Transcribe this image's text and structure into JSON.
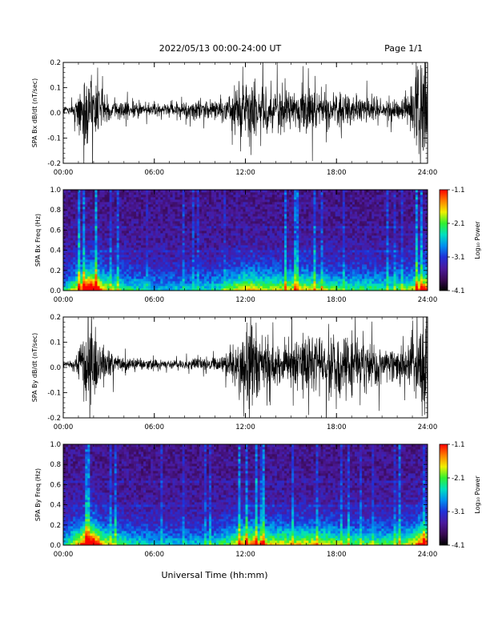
{
  "header": {
    "title": "2022/05/13  00:00-24:00 UT",
    "page": "Page 1/1"
  },
  "x_axis_label": "Universal Time (hh:mm)",
  "colors": {
    "trace": "#000000",
    "spectrogram_scale": [
      "#000000",
      "#3a0a55",
      "#4b1a9e",
      "#2030d8",
      "#0090f0",
      "#00e0c0",
      "#30f030",
      "#f0f000",
      "#ff8000",
      "#ff0000"
    ]
  },
  "chart_data": [
    {
      "type": "line",
      "id": "bx_trace",
      "ylabel": "SPA Bx dB/dt (nT/sec)",
      "x_ticks": [
        "00:00",
        "06:00",
        "12:00",
        "18:00",
        "24:00"
      ],
      "xlim": [
        0,
        24
      ],
      "ylim": [
        -0.2,
        0.2
      ],
      "y_ticks": [
        "-0.2",
        "-0.1",
        "0.0",
        "0.1",
        "0.2"
      ],
      "y_tick_values": [
        -0.2,
        -0.1,
        0.0,
        0.1,
        0.2
      ],
      "envelope": {
        "hours": [
          0,
          0.5,
          0.8,
          1.0,
          1.3,
          1.6,
          1.9,
          2.1,
          2.4,
          2.8,
          3.5,
          4.5,
          5.5,
          6.5,
          7.5,
          8.5,
          9.5,
          10.5,
          11.0,
          11.5,
          12.0,
          12.3,
          12.6,
          13.0,
          13.5,
          14.0,
          14.5,
          15.0,
          15.5,
          16.0,
          16.5,
          17.0,
          17.5,
          18.0,
          18.5,
          19.0,
          19.5,
          20.0,
          20.5,
          21.0,
          21.5,
          22.0,
          22.5,
          23.0,
          23.3,
          23.6,
          24.0
        ],
        "amplitude": [
          0.015,
          0.02,
          0.05,
          0.09,
          0.12,
          0.22,
          0.22,
          0.2,
          0.1,
          0.06,
          0.04,
          0.035,
          0.03,
          0.03,
          0.03,
          0.035,
          0.04,
          0.05,
          0.06,
          0.09,
          0.12,
          0.14,
          0.13,
          0.11,
          0.1,
          0.08,
          0.09,
          0.1,
          0.08,
          0.09,
          0.08,
          0.07,
          0.07,
          0.08,
          0.06,
          0.07,
          0.06,
          0.05,
          0.05,
          0.04,
          0.04,
          0.05,
          0.06,
          0.1,
          0.22,
          0.22,
          0.22
        ]
      }
    },
    {
      "type": "heatmap",
      "id": "bx_spectrogram",
      "ylabel": "SPA Bx Freq (Hz)",
      "x_ticks": [
        "00:00",
        "06:00",
        "12:00",
        "18:00",
        "24:00"
      ],
      "xlim": [
        0,
        24
      ],
      "ylim": [
        0.0,
        1.0
      ],
      "y_ticks": [
        "0.0",
        "0.2",
        "0.4",
        "0.6",
        "0.8",
        "1.0"
      ],
      "y_tick_values": [
        0.0,
        0.2,
        0.4,
        0.6,
        0.8,
        1.0
      ],
      "colorbar": {
        "label": "Log₁₀ Power",
        "ticks": [
          "-1.1",
          "-2.1",
          "-3.1",
          "-4.1"
        ],
        "range": [
          -4.1,
          -1.1
        ]
      },
      "activity": {
        "hours": [
          0,
          0.5,
          1.0,
          1.5,
          2.0,
          2.5,
          3.0,
          4.0,
          5.0,
          6.0,
          7.0,
          8.0,
          9.0,
          10.0,
          11.0,
          11.5,
          12.0,
          12.5,
          13.0,
          14.0,
          15.0,
          16.0,
          17.0,
          18.0,
          19.0,
          20.0,
          21.0,
          22.0,
          23.0,
          23.5,
          24.0
        ],
        "level": [
          0.3,
          0.45,
          0.6,
          0.85,
          0.9,
          0.65,
          0.5,
          0.4,
          0.35,
          0.3,
          0.3,
          0.3,
          0.32,
          0.35,
          0.45,
          0.55,
          0.6,
          0.58,
          0.55,
          0.5,
          0.55,
          0.55,
          0.5,
          0.45,
          0.4,
          0.42,
          0.4,
          0.42,
          0.5,
          0.7,
          0.75
        ]
      }
    },
    {
      "type": "line",
      "id": "by_trace",
      "ylabel": "SPA By dB/dt (nT/sec)",
      "x_ticks": [
        "00:00",
        "06:00",
        "12:00",
        "18:00",
        "24:00"
      ],
      "xlim": [
        0,
        24
      ],
      "ylim": [
        -0.2,
        0.2
      ],
      "y_ticks": [
        "-0.2",
        "-0.1",
        "0.0",
        "0.1",
        "0.2"
      ],
      "y_tick_values": [
        -0.2,
        -0.1,
        0.0,
        0.1,
        0.2
      ],
      "envelope": {
        "hours": [
          0,
          0.5,
          0.8,
          1.0,
          1.3,
          1.6,
          1.9,
          2.1,
          2.4,
          2.8,
          3.5,
          4.5,
          5.5,
          6.5,
          7.5,
          8.5,
          9.5,
          10.5,
          11.0,
          11.5,
          12.0,
          12.3,
          12.6,
          13.0,
          13.5,
          14.0,
          14.5,
          15.0,
          15.5,
          16.0,
          16.5,
          17.0,
          17.5,
          18.0,
          18.5,
          19.0,
          19.5,
          20.0,
          20.5,
          21.0,
          21.5,
          22.0,
          22.5,
          23.0,
          23.3,
          23.6,
          24.0
        ],
        "amplitude": [
          0.01,
          0.015,
          0.04,
          0.08,
          0.12,
          0.22,
          0.22,
          0.18,
          0.1,
          0.06,
          0.04,
          0.03,
          0.025,
          0.02,
          0.02,
          0.025,
          0.03,
          0.04,
          0.06,
          0.1,
          0.14,
          0.22,
          0.2,
          0.15,
          0.13,
          0.11,
          0.1,
          0.12,
          0.13,
          0.14,
          0.13,
          0.12,
          0.12,
          0.13,
          0.12,
          0.11,
          0.1,
          0.09,
          0.08,
          0.07,
          0.07,
          0.07,
          0.07,
          0.1,
          0.18,
          0.22,
          0.22
        ]
      }
    },
    {
      "type": "heatmap",
      "id": "by_spectrogram",
      "ylabel": "SPA By Freq (Hz)",
      "x_ticks": [
        "00:00",
        "06:00",
        "12:00",
        "18:00",
        "24:00"
      ],
      "xlim": [
        0,
        24
      ],
      "ylim": [
        0.0,
        1.0
      ],
      "y_ticks": [
        "0.0",
        "0.2",
        "0.4",
        "0.6",
        "0.8",
        "1.0"
      ],
      "y_tick_values": [
        0.0,
        0.2,
        0.4,
        0.6,
        0.8,
        1.0
      ],
      "colorbar": {
        "label": "Log₁₀ Power",
        "ticks": [
          "-1.1",
          "-2.1",
          "-3.1",
          "-4.1"
        ],
        "range": [
          -4.1,
          -1.1
        ]
      },
      "activity": {
        "hours": [
          0,
          0.5,
          1.0,
          1.5,
          2.0,
          2.5,
          3.0,
          4.0,
          5.0,
          6.0,
          7.0,
          8.0,
          9.0,
          10.0,
          11.0,
          11.5,
          12.0,
          12.5,
          13.0,
          14.0,
          15.0,
          16.0,
          17.0,
          18.0,
          19.0,
          20.0,
          21.0,
          22.0,
          23.0,
          23.5,
          24.0
        ],
        "level": [
          0.3,
          0.45,
          0.6,
          0.85,
          0.9,
          0.6,
          0.5,
          0.4,
          0.35,
          0.3,
          0.3,
          0.3,
          0.3,
          0.35,
          0.45,
          0.55,
          0.65,
          0.65,
          0.6,
          0.55,
          0.55,
          0.55,
          0.55,
          0.5,
          0.45,
          0.45,
          0.42,
          0.45,
          0.55,
          0.72,
          0.75
        ]
      }
    }
  ]
}
